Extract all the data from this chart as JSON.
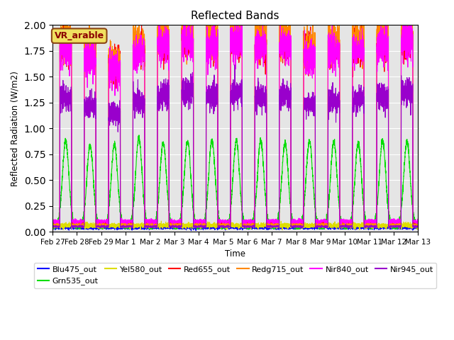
{
  "title": "Reflected Bands",
  "xlabel": "Time",
  "ylabel": "Reflected Radiation (W/m2)",
  "annotation": "VR_arable",
  "ylim": [
    0,
    2.0
  ],
  "background_color": "#e5e5e5",
  "series": [
    {
      "name": "Blu475_out",
      "color": "#0000ff",
      "base": 0.04,
      "peak": 0.0
    },
    {
      "name": "Grn535_out",
      "color": "#00dd00",
      "base": 0.05,
      "peak": 0.9
    },
    {
      "name": "Yel580_out",
      "color": "#dddd00",
      "base": 0.06,
      "peak": 0.0
    },
    {
      "name": "Red655_out",
      "color": "#ff0000",
      "base": 0.08,
      "peak": 1.9
    },
    {
      "name": "Redg715_out",
      "color": "#ff8800",
      "base": 0.07,
      "peak": 1.95
    },
    {
      "name": "Nir840_out",
      "color": "#ff00ff",
      "base": 0.1,
      "peak": 1.85
    },
    {
      "name": "Nir945_out",
      "color": "#9900cc",
      "base": 0.05,
      "peak": 1.35
    }
  ],
  "xtick_labels": [
    "Feb 27",
    "Feb 28",
    "Feb 29",
    "Mar 1",
    "Mar 2",
    "Mar 3",
    "Mar 4",
    "Mar 5",
    "Mar 6",
    "Mar 7",
    "Mar 8",
    "Mar 9",
    "Mar 10",
    "Mar 11",
    "Mar 12",
    "Mar 13"
  ],
  "n_days": 15,
  "points_per_day": 288,
  "day_peak_factors": [
    0.95,
    0.9,
    0.85,
    0.93,
    0.98,
    1.0,
    0.97,
    0.99,
    0.96,
    0.97,
    0.91,
    0.94,
    0.95,
    0.97,
    1.0
  ],
  "grn_peak_factors": [
    0.92,
    0.87,
    0.88,
    0.95,
    0.9,
    0.92,
    0.93,
    0.91,
    0.93,
    0.9,
    0.92,
    0.91,
    0.9,
    0.92,
    0.91
  ]
}
